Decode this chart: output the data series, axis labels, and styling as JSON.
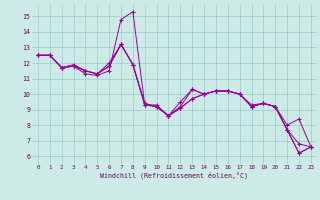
{
  "bg_color": "#cceae6",
  "line_color": "#990099",
  "grid_color": "#99cccc",
  "xlabel": "Windchill (Refroidissement éolien,°C)",
  "xlim": [
    -0.5,
    23.5
  ],
  "ylim": [
    5.5,
    15.8
  ],
  "yticks": [
    6,
    7,
    8,
    9,
    10,
    11,
    12,
    13,
    14,
    15
  ],
  "xticks": [
    0,
    1,
    2,
    3,
    4,
    5,
    6,
    7,
    8,
    9,
    10,
    11,
    12,
    13,
    14,
    15,
    16,
    17,
    18,
    19,
    20,
    21,
    22,
    23
  ],
  "series": [
    [
      12.5,
      12.5,
      11.7,
      11.8,
      11.3,
      11.2,
      11.5,
      14.8,
      15.3,
      9.3,
      9.3,
      8.6,
      9.2,
      10.3,
      10.0,
      10.2,
      10.2,
      10.0,
      9.2,
      9.4,
      9.2,
      7.7,
      6.2,
      6.6
    ],
    [
      12.5,
      12.5,
      11.7,
      11.8,
      11.5,
      11.3,
      11.8,
      13.2,
      11.9,
      9.3,
      9.2,
      8.6,
      9.1,
      9.7,
      10.0,
      10.2,
      10.2,
      10.0,
      9.2,
      9.4,
      9.2,
      7.7,
      6.8,
      6.6
    ],
    [
      12.5,
      12.5,
      11.7,
      11.8,
      11.5,
      11.3,
      11.8,
      13.2,
      11.9,
      9.3,
      9.2,
      8.6,
      9.1,
      9.7,
      10.0,
      10.2,
      10.2,
      10.0,
      9.2,
      9.4,
      9.2,
      7.7,
      6.2,
      6.6
    ],
    [
      12.5,
      12.5,
      11.7,
      11.9,
      11.5,
      11.3,
      12.0,
      13.2,
      11.9,
      9.4,
      9.2,
      8.6,
      9.5,
      10.3,
      10.0,
      10.2,
      10.2,
      10.0,
      9.3,
      9.4,
      9.2,
      8.0,
      8.4,
      6.6
    ]
  ],
  "xlabel_color": "#660066",
  "tick_color": "#660066"
}
